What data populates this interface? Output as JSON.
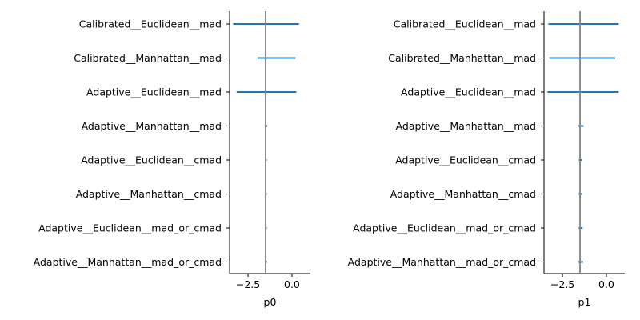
{
  "chart_data": [
    {
      "type": "interval",
      "xlabel": "p0",
      "xticks": [
        -2.5,
        0.0
      ],
      "xlim": [
        -3.55,
        1.05
      ],
      "reference_line": -1.5,
      "colors": {
        "interval": "#1f77b4",
        "reference": "#808080"
      },
      "categories": [
        "Calibrated__Euclidean__mad",
        "Calibrated__Manhattan__mad",
        "Adaptive__Euclidean__mad",
        "Adaptive__Manhattan__mad",
        "Adaptive__Euclidean__cmad",
        "Adaptive__Manhattan__cmad",
        "Adaptive__Euclidean__mad_or_cmad",
        "Adaptive__Manhattan__mad_or_cmad"
      ],
      "intervals": [
        [
          -3.35,
          0.4
        ],
        [
          -1.95,
          0.2
        ],
        [
          -3.15,
          0.25
        ],
        [
          -1.55,
          -1.4
        ],
        [
          -1.53,
          -1.43
        ],
        [
          -1.53,
          -1.43
        ],
        [
          -1.53,
          -1.43
        ],
        [
          -1.54,
          -1.42
        ]
      ]
    },
    {
      "type": "interval",
      "xlabel": "p1",
      "xticks": [
        -2.5,
        0.0
      ],
      "xlim": [
        -3.55,
        1.05
      ],
      "reference_line": -1.5,
      "colors": {
        "interval": "#1f77b4",
        "reference": "#808080"
      },
      "categories": [
        "Calibrated__Euclidean__mad",
        "Calibrated__Manhattan__mad",
        "Adaptive__Euclidean__mad",
        "Adaptive__Manhattan__mad",
        "Adaptive__Euclidean__cmad",
        "Adaptive__Manhattan__cmad",
        "Adaptive__Euclidean__mad_or_cmad",
        "Adaptive__Manhattan__mad_or_cmad"
      ],
      "intervals": [
        [
          -3.3,
          0.7
        ],
        [
          -3.25,
          0.5
        ],
        [
          -3.35,
          0.7
        ],
        [
          -1.6,
          -1.3
        ],
        [
          -1.57,
          -1.37
        ],
        [
          -1.57,
          -1.37
        ],
        [
          -1.57,
          -1.35
        ],
        [
          -1.6,
          -1.32
        ]
      ]
    }
  ]
}
